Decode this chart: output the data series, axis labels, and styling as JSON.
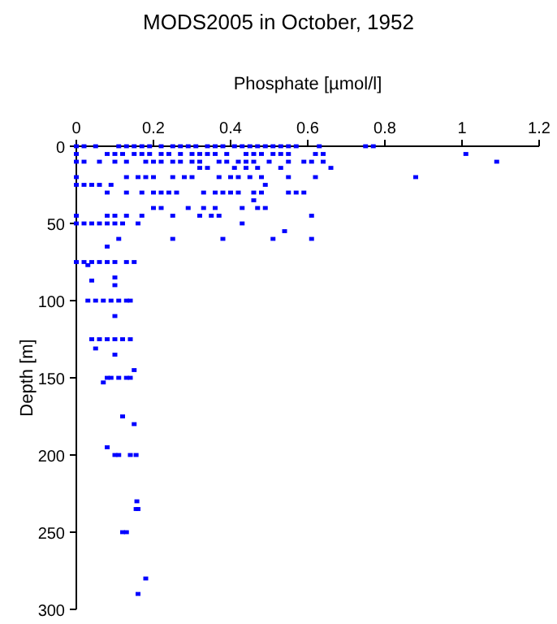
{
  "chart_data": {
    "type": "scatter",
    "title": "MODS2005 in October, 1952",
    "xlabel": "Phosphate [µmol/l]",
    "ylabel": "Depth [m]",
    "xlim": [
      0,
      1.2
    ],
    "xticks": [
      0,
      0.2,
      0.4,
      0.6,
      0.8,
      1,
      1.2
    ],
    "ylim": [
      300,
      0
    ],
    "yticks": [
      0,
      50,
      100,
      150,
      200,
      250,
      300
    ],
    "grid": false,
    "marker": "square",
    "series": [
      {
        "color": "#0000ff",
        "x": [
          0,
          0.02,
          0.05,
          0.11,
          0.13,
          0.15,
          0.17,
          0.19,
          0.22,
          0.25,
          0.27,
          0.29,
          0.31,
          0.34,
          0.36,
          0.38,
          0.41,
          0.43,
          0.45,
          0.47,
          0.49,
          0.51,
          0.53,
          0.55,
          0.57,
          0.63,
          0.75,
          0.77,
          0,
          0.08,
          0.1,
          0.12,
          0.15,
          0.17,
          0.19,
          0.22,
          0.24,
          0.27,
          0.3,
          0.32,
          0.34,
          0.36,
          0.39,
          0.44,
          0.46,
          0.48,
          0.51,
          0.53,
          0.55,
          0.62,
          0.64,
          1.01,
          0,
          0.02,
          0.06,
          0.1,
          0.13,
          0.18,
          0.2,
          0.22,
          0.25,
          0.27,
          0.3,
          0.32,
          0.37,
          0.39,
          0.42,
          0.44,
          0.46,
          0.5,
          0.55,
          0.59,
          0.61,
          0.64,
          1.09,
          0.32,
          0.34,
          0.41,
          0.44,
          0.47,
          0.53,
          0.66,
          0,
          0.13,
          0.16,
          0.18,
          0.2,
          0.25,
          0.28,
          0.3,
          0.37,
          0.4,
          0.42,
          0.45,
          0.48,
          0.55,
          0.62,
          0.88,
          0,
          0.02,
          0.04,
          0.06,
          0.09,
          0.49,
          0.08,
          0.13,
          0.17,
          0.2,
          0.22,
          0.24,
          0.26,
          0.33,
          0.36,
          0.38,
          0.4,
          0.42,
          0.46,
          0.48,
          0.55,
          0.57,
          0.59,
          0.46,
          0.2,
          0.22,
          0.29,
          0.33,
          0.36,
          0.43,
          0.47,
          0.49,
          0,
          0.08,
          0.1,
          0.13,
          0.17,
          0.25,
          0.32,
          0.35,
          0.37,
          0.61,
          0,
          0.02,
          0.04,
          0.06,
          0.08,
          0.1,
          0.12,
          0.16,
          0.43,
          0.54,
          0.11,
          0.25,
          0.38,
          0.51,
          0.61,
          0.08,
          0,
          0.02,
          0.04,
          0.06,
          0.08,
          0.1,
          0.13,
          0.15,
          0.03,
          0.04,
          0.1,
          0.1,
          0.03,
          0.05,
          0.07,
          0.09,
          0.11,
          0.13,
          0.14,
          0.1,
          0.04,
          0.06,
          0.08,
          0.1,
          0.12,
          0.14,
          0.05,
          0.1,
          0.15,
          0.08,
          0.09,
          0.11,
          0.13,
          0.14,
          0.07,
          0.12,
          0.15,
          0.08,
          0.1,
          0.11,
          0.14,
          0.155,
          0.157,
          0.155,
          0.16,
          0.12,
          0.13,
          0.18,
          0.16
        ],
        "values": [
          0,
          0,
          0,
          0,
          0,
          0,
          0,
          0,
          0,
          0,
          0,
          0,
          0,
          0,
          0,
          0,
          0,
          0,
          0,
          0,
          0,
          0,
          0,
          0,
          0,
          0,
          0,
          0,
          5,
          5,
          5,
          5,
          5,
          5,
          5,
          5,
          5,
          5,
          5,
          5,
          5,
          5,
          5,
          5,
          5,
          5,
          5,
          5,
          5,
          5,
          5,
          5,
          10,
          10,
          10,
          10,
          10,
          10,
          10,
          10,
          10,
          10,
          10,
          10,
          10,
          10,
          10,
          10,
          10,
          10,
          10,
          10,
          10,
          10,
          10,
          14,
          14,
          14,
          14,
          14,
          14,
          14,
          20,
          20,
          20,
          20,
          20,
          20,
          20,
          20,
          20,
          20,
          20,
          20,
          20,
          20,
          20,
          20,
          25,
          25,
          25,
          25,
          25,
          25,
          30,
          30,
          30,
          30,
          30,
          30,
          30,
          30,
          30,
          30,
          30,
          30,
          30,
          30,
          30,
          30,
          30,
          35,
          40,
          40,
          40,
          40,
          40,
          40,
          40,
          40,
          45,
          45,
          45,
          45,
          45,
          45,
          45,
          45,
          45,
          45,
          50,
          50,
          50,
          50,
          50,
          50,
          50,
          50,
          50,
          55,
          60,
          60,
          60,
          60,
          60,
          65,
          75,
          75,
          75,
          75,
          75,
          75,
          75,
          75,
          77,
          87,
          85,
          90,
          100,
          100,
          100,
          100,
          100,
          100,
          100,
          110,
          125,
          125,
          125,
          125,
          125,
          125,
          131,
          135,
          145,
          150,
          150,
          150,
          150,
          150,
          153,
          175,
          180,
          195,
          200,
          200,
          200,
          200,
          230,
          235,
          235,
          250,
          250,
          280,
          290
        ]
      }
    ]
  }
}
